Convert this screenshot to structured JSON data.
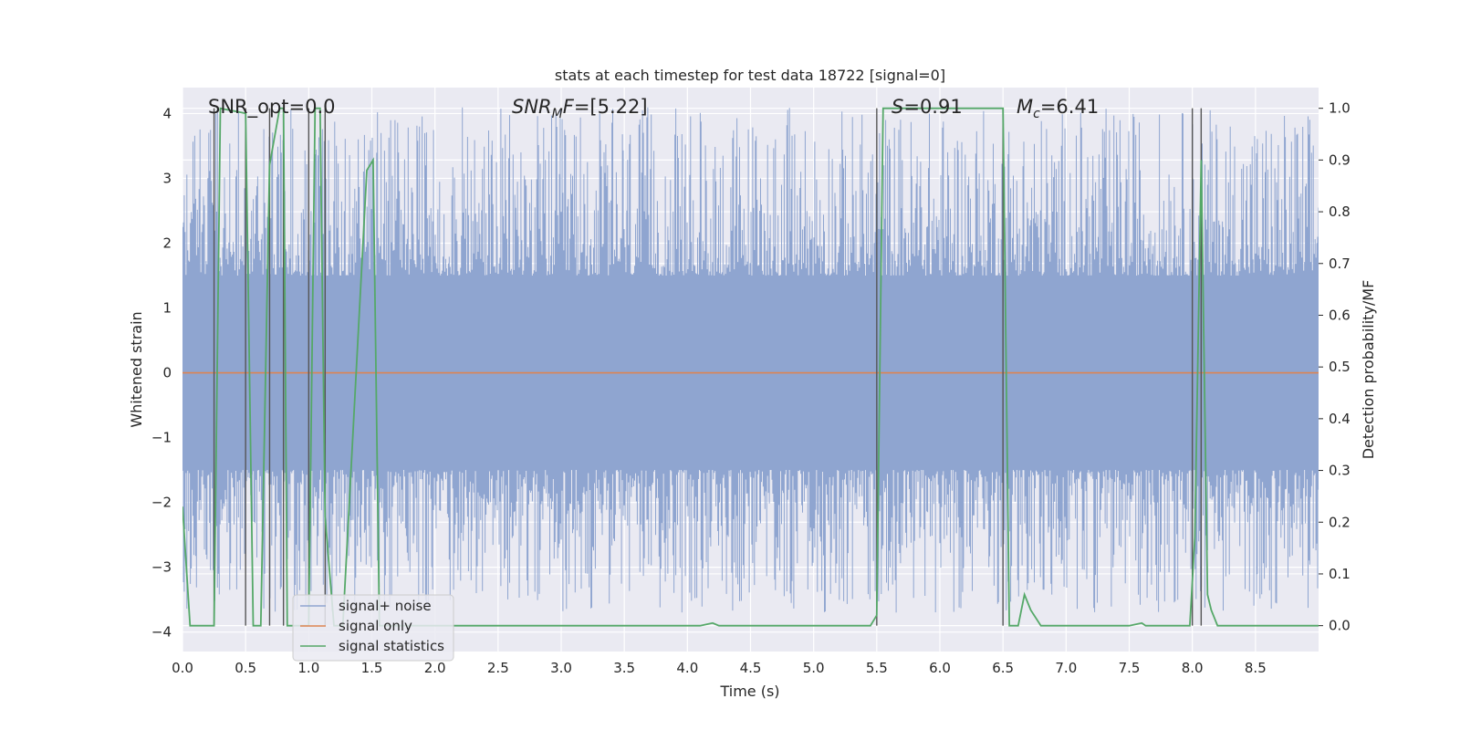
{
  "chart_data": {
    "type": "line",
    "title": "stats at each timestep for test data 18722 [signal=0]",
    "xlabel": "Time (s)",
    "ylabel_left": "Whitened strain",
    "ylabel_right": "Detection probability/MF",
    "xlim": [
      0,
      9
    ],
    "ylim_left": [
      -4.3,
      4.4
    ],
    "ylim_right": [
      -0.05,
      1.04
    ],
    "xticks": [
      "0.0",
      "0.5",
      "1.0",
      "1.5",
      "2.0",
      "2.5",
      "3.0",
      "3.5",
      "4.0",
      "4.5",
      "5.0",
      "5.5",
      "6.0",
      "6.5",
      "7.0",
      "7.5",
      "8.0",
      "8.5"
    ],
    "yticks_left": [
      "−4",
      "−3",
      "−2",
      "−1",
      "0",
      "1",
      "2",
      "3",
      "4"
    ],
    "yticks_right": [
      "0.0",
      "0.1",
      "0.2",
      "0.3",
      "0.4",
      "0.5",
      "0.6",
      "0.7",
      "0.8",
      "0.9",
      "1.0"
    ],
    "grid": true,
    "legend_position": "lower-left",
    "annotations": {
      "snr_opt": "SNR_opt=0.0",
      "snr_mf": "=[5.22]",
      "s_stat": "=0.91",
      "mc": "=6.41"
    },
    "annotation_symbols": {
      "snr_mf_base": "SNR",
      "snr_mf_sub": "M",
      "snr_mf_tail": "F",
      "s_base": "S",
      "mc_base": "M",
      "mc_sub": "c"
    },
    "series": [
      {
        "name": "signal+ noise",
        "color": "#8fa5d0",
        "description_type": "whitened noise band",
        "envelope": {
          "core_low": -1.5,
          "core_high": 1.5,
          "spike_max": 4.1,
          "spike_min": -3.7
        }
      },
      {
        "name": "signal only",
        "color": "#dd8452",
        "x": [
          0,
          9
        ],
        "y": [
          0,
          0
        ]
      },
      {
        "name": "signal statistics",
        "color": "#55a868",
        "axis": "right",
        "x": [
          0,
          0.06,
          0.25,
          0.3,
          0.5,
          0.56,
          0.62,
          0.69,
          0.77,
          0.8,
          0.83,
          0.87,
          1.0,
          1.05,
          1.09,
          1.13,
          1.2,
          1.27,
          1.46,
          1.51,
          1.56,
          1.62,
          1.7,
          4.1,
          4.2,
          4.25,
          5.45,
          5.5,
          5.55,
          6.5,
          6.55,
          6.62,
          6.67,
          6.72,
          6.8,
          6.83,
          7.5,
          7.6,
          7.63,
          7.98,
          8.02,
          8.07,
          8.12,
          8.15,
          8.2,
          9.0
        ],
        "y": [
          0.23,
          0.0,
          0.0,
          1.0,
          0.99,
          0.0,
          0.0,
          0.89,
          1.0,
          1.0,
          0.0,
          0.0,
          0.0,
          1.0,
          1.0,
          0.21,
          0.0,
          0.0,
          0.88,
          0.9,
          0.0,
          0.0,
          0.0,
          0.0,
          0.005,
          0.0,
          0.0,
          0.02,
          1.0,
          1.0,
          0.0,
          0.0,
          0.06,
          0.03,
          0.0,
          0.0,
          0.0,
          0.005,
          0.0,
          0.0,
          0.17,
          0.9,
          0.06,
          0.03,
          0.0,
          0.0
        ]
      }
    ],
    "detection_markers_x": [
      0.25,
      0.5,
      0.69,
      0.8,
      1.0,
      1.13,
      5.5,
      6.5,
      8.0,
      8.07
    ]
  }
}
